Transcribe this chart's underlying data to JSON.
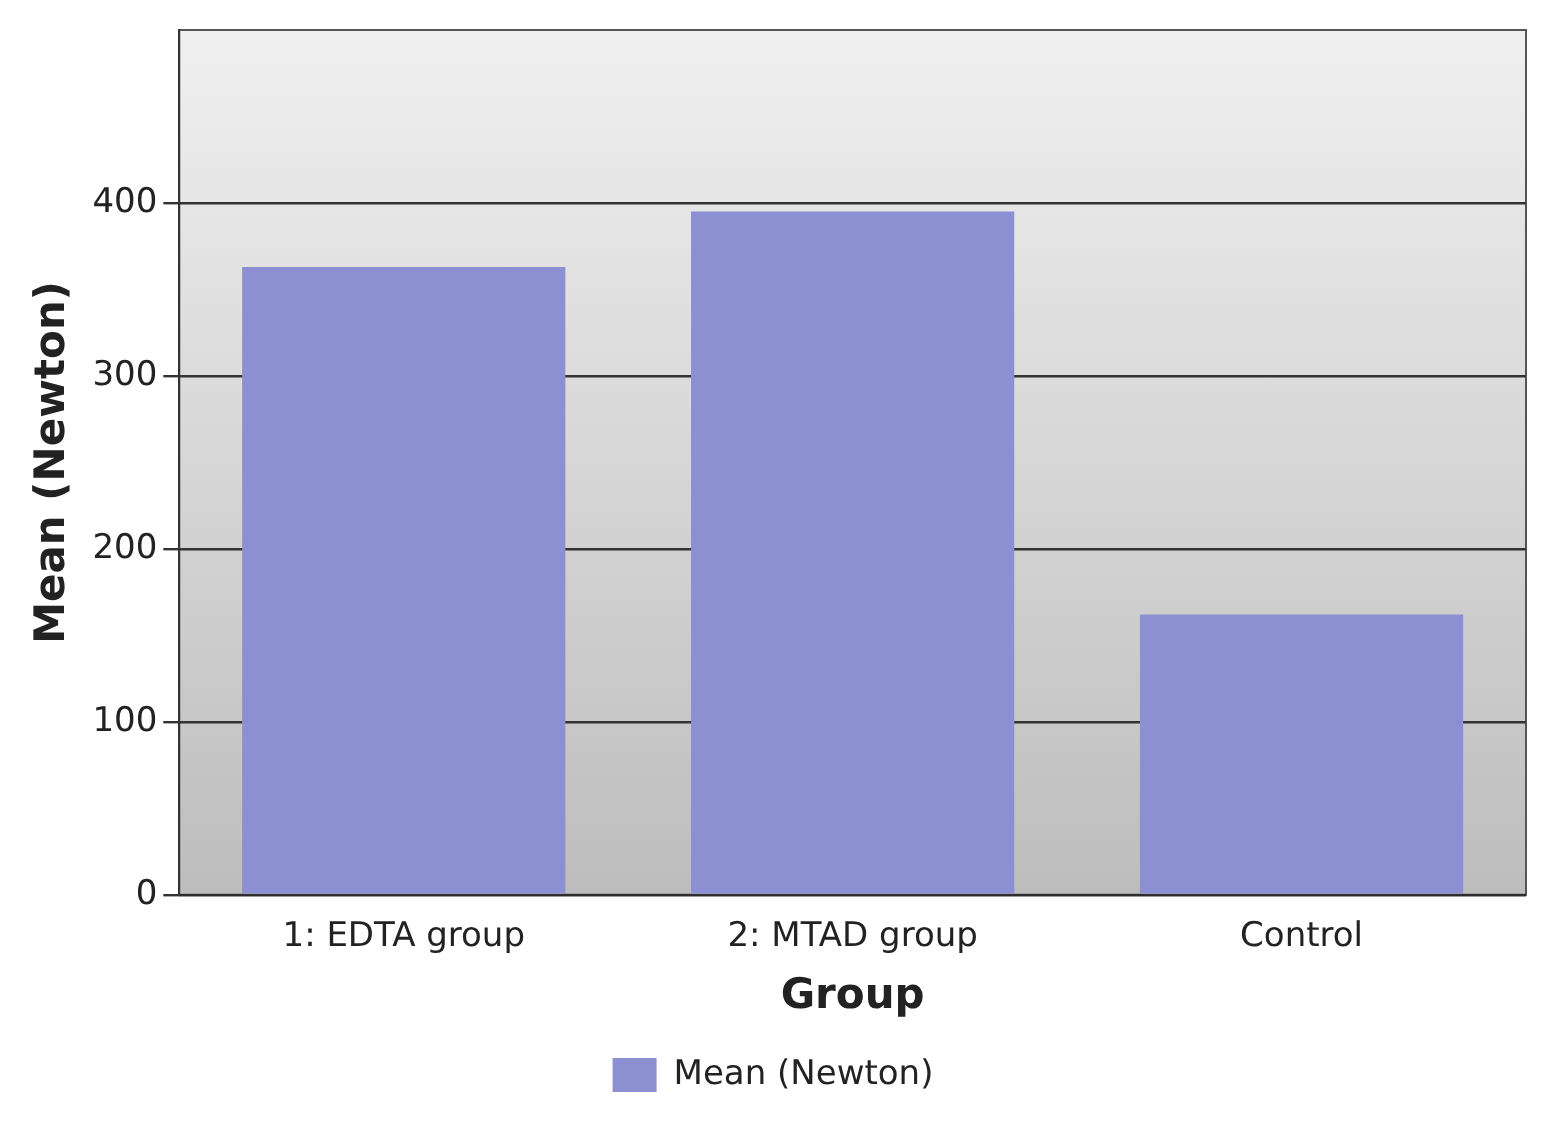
{
  "chart_data": {
    "type": "bar",
    "xlabel": "Group",
    "ylabel": "Mean (Newton)",
    "categories": [
      "1: EDTA group",
      "2: MTAD group",
      "Control"
    ],
    "series": [
      {
        "name": "Mean (Newton)",
        "color": "#8c8fd2",
        "values": [
          363,
          395,
          162
        ]
      }
    ],
    "ylim": [
      0,
      500
    ],
    "yticks": [
      0,
      100,
      200,
      300,
      400
    ],
    "grid": "y",
    "legend": "bottom"
  }
}
